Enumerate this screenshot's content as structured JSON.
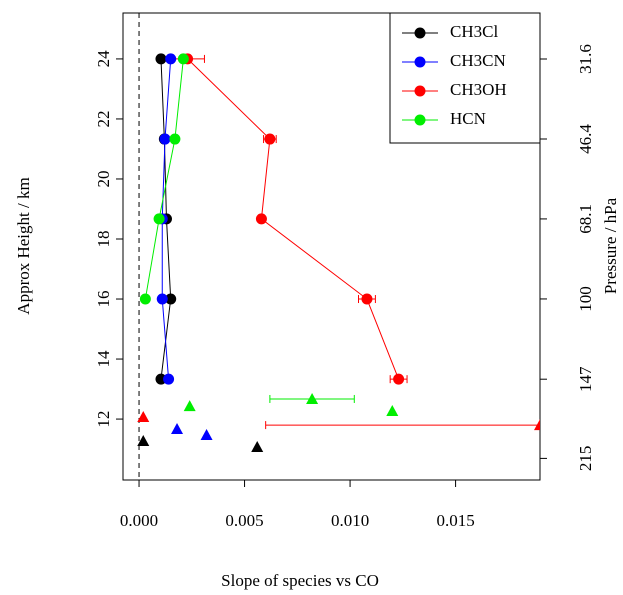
{
  "chart_data": {
    "type": "profile",
    "x_label": "Slope of species vs CO",
    "y_label": "Approx Height / km",
    "y2_label": "Pressure / hPa",
    "xlim": [
      -0.00076,
      0.019
    ],
    "xticks": [
      {
        "value": 0,
        "label": "0.000"
      },
      {
        "value": 0.005,
        "label": "0.005"
      },
      {
        "value": 0.01,
        "label": "0.010"
      },
      {
        "value": 0.015,
        "label": "0.015"
      }
    ],
    "ylim": [
      9.97,
      25.53
    ],
    "yticks": [
      12,
      14,
      16,
      18,
      20,
      22,
      24
    ],
    "y2lim": [
      25.34,
      238.5
    ],
    "y2log": true,
    "y2ticks": [
      31.6,
      46.4,
      68.1,
      100,
      147,
      215
    ],
    "vline": 0,
    "legend": "top-right",
    "heights": [
      24,
      21.33,
      18.67,
      16,
      13.33
    ],
    "series": [
      {
        "name": "CH3Cl",
        "color": "#000000",
        "values": [
          0.00104,
          0.0012,
          0.0013,
          0.0015,
          0.00104
        ],
        "errors": [
          null,
          null,
          null,
          null,
          null
        ],
        "tri_values": [
          0.0002,
          0.0056
        ],
        "tri_heights": [
          11.27,
          11.07
        ],
        "tri_errors": [
          null,
          null
        ]
      },
      {
        "name": "CH3CN",
        "color": "#0000ff",
        "values": [
          0.0015,
          0.00123,
          0.0011,
          0.0011,
          0.0014
        ],
        "errors": [
          null,
          null,
          null,
          null,
          null
        ],
        "tri_values": [
          0.0018,
          0.0032
        ],
        "tri_heights": [
          11.67,
          11.47
        ],
        "tri_errors": [
          null,
          null
        ]
      },
      {
        "name": "CH3OH",
        "color": "#ff0000",
        "values": [
          0.0023,
          0.0062,
          0.0058,
          0.0108,
          0.0123
        ],
        "errors": [
          0.0008,
          0.0003,
          null,
          0.0004,
          0.0004
        ],
        "tri_values": [
          0.0002,
          0.019
        ],
        "tri_heights": [
          12.07,
          11.8
        ],
        "tri_errors": [
          null,
          0.013
        ]
      },
      {
        "name": "HCN",
        "color": "#00ee00",
        "values": [
          0.0021,
          0.0017,
          0.00095,
          0.0003,
          null
        ],
        "errors": [
          null,
          null,
          null,
          null,
          null
        ],
        "tri_values": [
          0.0024,
          0.0082,
          0.012
        ],
        "tri_heights": [
          12.43,
          12.67,
          12.27
        ],
        "tri_errors": [
          null,
          0.002,
          null
        ]
      }
    ]
  }
}
